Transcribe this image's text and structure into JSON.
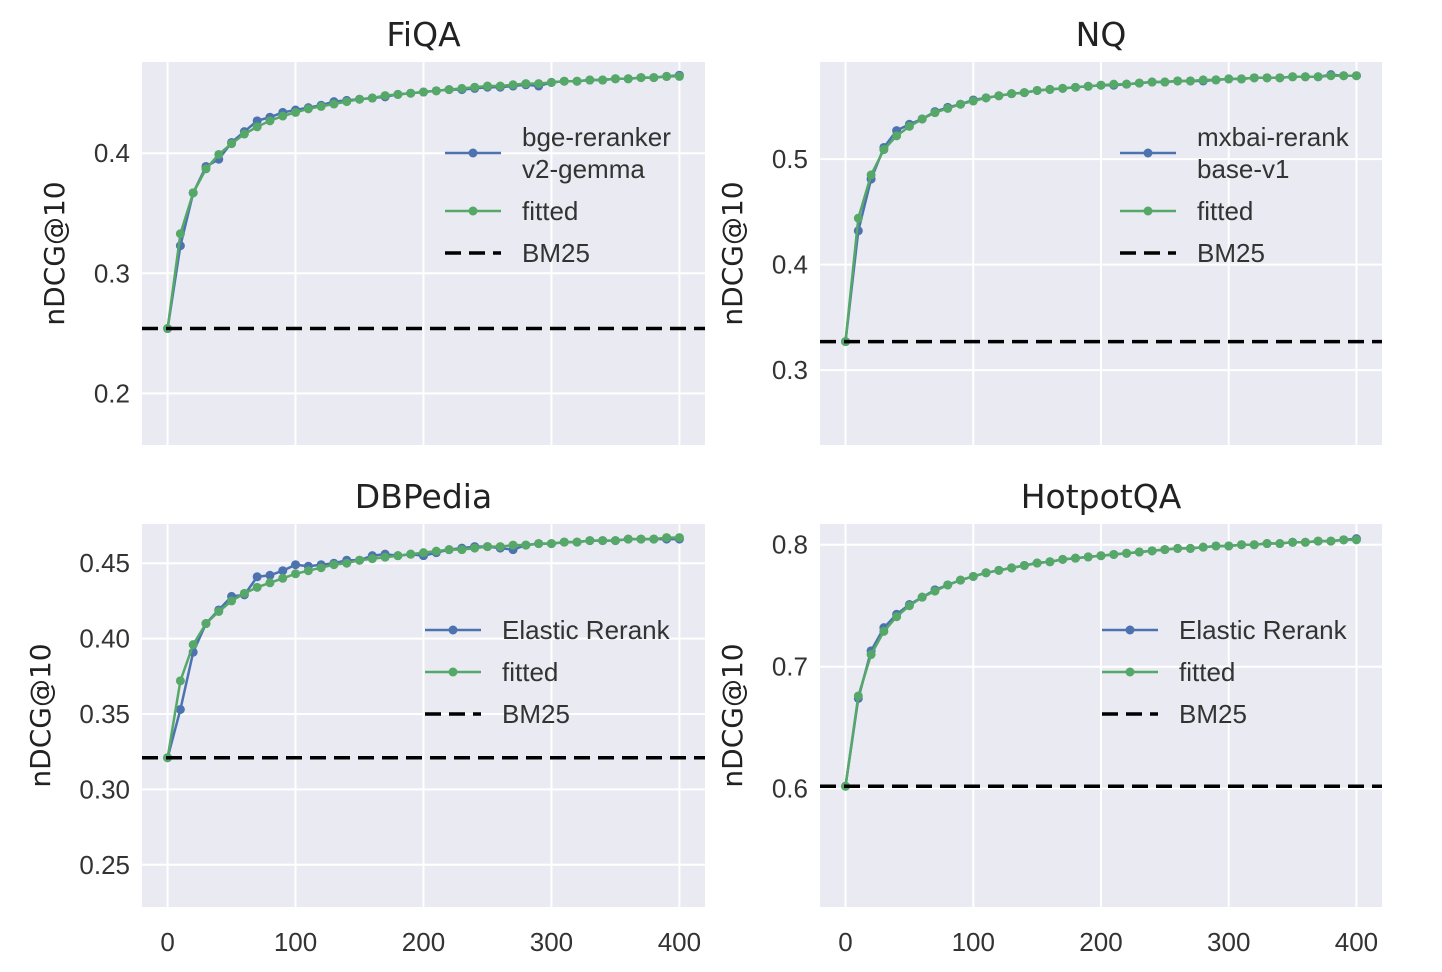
{
  "chart_data": [
    {
      "type": "line",
      "title": "FiQA",
      "xlabel": "",
      "ylabel": "nDCG@10",
      "xlim": [
        -20,
        420
      ],
      "ylim": [
        0.157,
        0.476
      ],
      "xticks": [
        0,
        100,
        200,
        300,
        400
      ],
      "show_xtick_labels": false,
      "yticks": [
        0.2,
        0.3,
        0.4
      ],
      "ytick_labels": [
        "0.2",
        "0.3",
        "0.4"
      ],
      "grid": true,
      "legend_placement": "center-right",
      "x": [
        0,
        10,
        20,
        30,
        40,
        50,
        60,
        70,
        80,
        90,
        100,
        110,
        120,
        130,
        140,
        150,
        160,
        170,
        180,
        190,
        200,
        210,
        220,
        230,
        240,
        250,
        260,
        270,
        280,
        290,
        300,
        310,
        320,
        330,
        340,
        350,
        360,
        370,
        380,
        390,
        400
      ],
      "series": [
        {
          "name": "bge-reranker\nv2-gemma",
          "legend_lines": [
            "bge-reranker",
            "v2-gemma"
          ],
          "color": "#4c72b0",
          "style": "line-marker",
          "values": [
            0.254,
            0.323,
            0.367,
            0.389,
            0.395,
            0.409,
            0.418,
            0.427,
            0.43,
            0.434,
            0.436,
            0.438,
            0.44,
            0.443,
            0.444,
            0.445,
            0.446,
            0.447,
            0.449,
            0.45,
            0.451,
            0.452,
            0.453,
            0.453,
            0.454,
            0.455,
            0.455,
            0.456,
            0.457,
            0.456,
            0.459,
            0.46,
            0.46,
            0.461,
            0.461,
            0.462,
            0.462,
            0.463,
            0.463,
            0.464,
            0.465
          ]
        },
        {
          "name": "fitted",
          "legend_lines": [
            "fitted"
          ],
          "color": "#55a868",
          "style": "line-marker",
          "values": [
            0.254,
            0.333,
            0.367,
            0.387,
            0.399,
            0.408,
            0.416,
            0.422,
            0.427,
            0.431,
            0.434,
            0.437,
            0.439,
            0.441,
            0.443,
            0.445,
            0.446,
            0.448,
            0.449,
            0.45,
            0.451,
            0.452,
            0.453,
            0.454,
            0.455,
            0.456,
            0.456,
            0.457,
            0.458,
            0.458,
            0.459,
            0.46,
            0.46,
            0.461,
            0.461,
            0.462,
            0.462,
            0.463,
            0.463,
            0.464,
            0.464
          ]
        },
        {
          "name": "BM25",
          "legend_lines": [
            "BM25"
          ],
          "color": "#000000",
          "style": "dashed-hline",
          "value": 0.254
        }
      ]
    },
    {
      "type": "line",
      "title": "NQ",
      "xlabel": "",
      "ylabel": "nDCG@10",
      "xlim": [
        -20,
        420
      ],
      "ylim": [
        0.229,
        0.592
      ],
      "xticks": [
        0,
        100,
        200,
        300,
        400
      ],
      "show_xtick_labels": false,
      "yticks": [
        0.3,
        0.4,
        0.5
      ],
      "ytick_labels": [
        "0.3",
        "0.4",
        "0.5"
      ],
      "grid": true,
      "legend_placement": "center-right",
      "x": [
        0,
        10,
        20,
        30,
        40,
        50,
        60,
        70,
        80,
        90,
        100,
        110,
        120,
        130,
        140,
        150,
        160,
        170,
        180,
        190,
        200,
        210,
        220,
        230,
        240,
        250,
        260,
        270,
        280,
        290,
        300,
        310,
        320,
        330,
        340,
        350,
        360,
        370,
        380,
        390,
        400
      ],
      "series": [
        {
          "name": "mxbai-rerank\nbase-v1",
          "legend_lines": [
            "mxbai-rerank",
            "base-v1"
          ],
          "color": "#4c72b0",
          "style": "line-marker",
          "values": [
            0.327,
            0.432,
            0.481,
            0.511,
            0.527,
            0.533,
            0.538,
            0.545,
            0.549,
            0.552,
            0.556,
            0.558,
            0.56,
            0.562,
            0.563,
            0.565,
            0.566,
            0.567,
            0.568,
            0.569,
            0.57,
            0.57,
            0.571,
            0.572,
            0.573,
            0.573,
            0.574,
            0.574,
            0.574,
            0.575,
            0.576,
            0.576,
            0.577,
            0.577,
            0.577,
            0.578,
            0.578,
            0.578,
            0.58,
            0.579,
            0.579
          ]
        },
        {
          "name": "fitted",
          "legend_lines": [
            "fitted"
          ],
          "color": "#55a868",
          "style": "line-marker",
          "values": [
            0.327,
            0.444,
            0.485,
            0.509,
            0.522,
            0.531,
            0.538,
            0.544,
            0.548,
            0.552,
            0.555,
            0.558,
            0.56,
            0.562,
            0.563,
            0.565,
            0.566,
            0.567,
            0.568,
            0.569,
            0.57,
            0.571,
            0.571,
            0.572,
            0.573,
            0.573,
            0.574,
            0.574,
            0.575,
            0.575,
            0.576,
            0.576,
            0.577,
            0.577,
            0.577,
            0.578,
            0.578,
            0.578,
            0.579,
            0.579,
            0.579
          ]
        },
        {
          "name": "BM25",
          "legend_lines": [
            "BM25"
          ],
          "color": "#000000",
          "style": "dashed-hline",
          "value": 0.327
        }
      ]
    },
    {
      "type": "line",
      "title": "DBPedia",
      "xlabel": "",
      "ylabel": "nDCG@10",
      "xlim": [
        -20,
        420
      ],
      "ylim": [
        0.222,
        0.476
      ],
      "xticks": [
        0,
        100,
        200,
        300,
        400
      ],
      "xtick_labels": [
        "0",
        "100",
        "200",
        "300",
        "400"
      ],
      "show_xtick_labels": true,
      "yticks": [
        0.25,
        0.3,
        0.35,
        0.4,
        0.45
      ],
      "ytick_labels": [
        "0.25",
        "0.30",
        "0.35",
        "0.40",
        "0.45"
      ],
      "grid": true,
      "legend_placement": "center-right",
      "x": [
        0,
        10,
        20,
        30,
        40,
        50,
        60,
        70,
        80,
        90,
        100,
        110,
        120,
        130,
        140,
        150,
        160,
        170,
        180,
        190,
        200,
        210,
        220,
        230,
        240,
        250,
        260,
        270,
        280,
        290,
        300,
        310,
        320,
        330,
        340,
        350,
        360,
        370,
        380,
        390,
        400
      ],
      "series": [
        {
          "name": "Elastic Rerank",
          "legend_lines": [
            "Elastic Rerank"
          ],
          "color": "#4c72b0",
          "style": "line-marker",
          "values": [
            0.321,
            0.353,
            0.391,
            0.41,
            0.419,
            0.428,
            0.429,
            0.441,
            0.442,
            0.445,
            0.449,
            0.448,
            0.449,
            0.45,
            0.452,
            0.452,
            0.455,
            0.456,
            0.455,
            0.456,
            0.455,
            0.457,
            0.459,
            0.46,
            0.461,
            0.461,
            0.46,
            0.459,
            0.462,
            0.463,
            0.463,
            0.464,
            0.464,
            0.465,
            0.465,
            0.465,
            0.466,
            0.466,
            0.466,
            0.466,
            0.466
          ]
        },
        {
          "name": "fitted",
          "legend_lines": [
            "fitted"
          ],
          "color": "#55a868",
          "style": "line-marker",
          "values": [
            0.321,
            0.372,
            0.396,
            0.41,
            0.418,
            0.425,
            0.43,
            0.434,
            0.437,
            0.44,
            0.443,
            0.445,
            0.447,
            0.449,
            0.45,
            0.452,
            0.453,
            0.454,
            0.455,
            0.456,
            0.457,
            0.458,
            0.459,
            0.459,
            0.46,
            0.461,
            0.461,
            0.462,
            0.462,
            0.463,
            0.463,
            0.464,
            0.464,
            0.465,
            0.465,
            0.465,
            0.466,
            0.466,
            0.466,
            0.467,
            0.467
          ]
        },
        {
          "name": "BM25",
          "legend_lines": [
            "BM25"
          ],
          "color": "#000000",
          "style": "dashed-hline",
          "value": 0.321
        }
      ]
    },
    {
      "type": "line",
      "title": "HotpotQA",
      "xlabel": "",
      "ylabel": "nDCG@10",
      "xlim": [
        -20,
        420
      ],
      "ylim": [
        0.503,
        0.817
      ],
      "xticks": [
        0,
        100,
        200,
        300,
        400
      ],
      "xtick_labels": [
        "0",
        "100",
        "200",
        "300",
        "400"
      ],
      "show_xtick_labels": true,
      "yticks": [
        0.6,
        0.7,
        0.8
      ],
      "ytick_labels": [
        "0.6",
        "0.7",
        "0.8"
      ],
      "grid": true,
      "legend_placement": "center-right",
      "x": [
        0,
        10,
        20,
        30,
        40,
        50,
        60,
        70,
        80,
        90,
        100,
        110,
        120,
        130,
        140,
        150,
        160,
        170,
        180,
        190,
        200,
        210,
        220,
        230,
        240,
        250,
        260,
        270,
        280,
        290,
        300,
        310,
        320,
        330,
        340,
        350,
        360,
        370,
        380,
        390,
        400
      ],
      "series": [
        {
          "name": "Elastic Rerank",
          "legend_lines": [
            "Elastic Rerank"
          ],
          "color": "#4c72b0",
          "style": "line-marker",
          "values": [
            0.602,
            0.674,
            0.713,
            0.732,
            0.743,
            0.751,
            0.757,
            0.763,
            0.767,
            0.771,
            0.774,
            0.777,
            0.779,
            0.781,
            0.783,
            0.785,
            0.786,
            0.788,
            0.789,
            0.79,
            0.791,
            0.792,
            0.793,
            0.794,
            0.795,
            0.796,
            0.797,
            0.797,
            0.798,
            0.799,
            0.799,
            0.8,
            0.8,
            0.801,
            0.801,
            0.802,
            0.802,
            0.803,
            0.803,
            0.804,
            0.805
          ]
        },
        {
          "name": "fitted",
          "legend_lines": [
            "fitted"
          ],
          "color": "#55a868",
          "style": "line-marker",
          "values": [
            0.602,
            0.676,
            0.71,
            0.729,
            0.741,
            0.75,
            0.757,
            0.762,
            0.767,
            0.771,
            0.774,
            0.777,
            0.779,
            0.781,
            0.783,
            0.785,
            0.786,
            0.788,
            0.789,
            0.79,
            0.791,
            0.792,
            0.793,
            0.794,
            0.795,
            0.796,
            0.797,
            0.797,
            0.798,
            0.799,
            0.799,
            0.8,
            0.8,
            0.801,
            0.801,
            0.802,
            0.802,
            0.803,
            0.803,
            0.804,
            0.804
          ]
        },
        {
          "name": "BM25",
          "legend_lines": [
            "BM25"
          ],
          "color": "#000000",
          "style": "dashed-hline",
          "value": 0.602
        }
      ]
    }
  ],
  "colors": {
    "axes_background": "#eaeaf2",
    "grid": "#ffffff"
  }
}
